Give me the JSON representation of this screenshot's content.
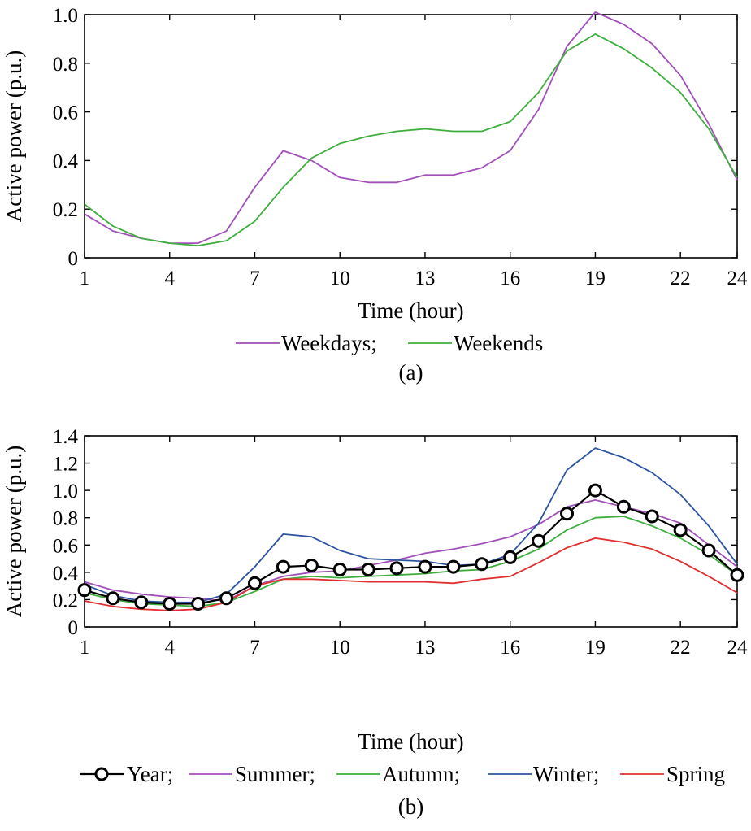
{
  "chart_data": [
    {
      "type": "line",
      "caption": "(a)",
      "xlabel": "Time (hour)",
      "ylabel": "Active power (p.u.)",
      "xlim": [
        1,
        24
      ],
      "ylim": [
        0,
        1.0
      ],
      "xticks": [
        1,
        4,
        7,
        10,
        13,
        16,
        19,
        22,
        24
      ],
      "yticks": [
        0,
        0.2,
        0.4,
        0.6,
        0.8,
        1.0
      ],
      "ytick_labels": [
        "0",
        "0.2",
        "0.4",
        "0.6",
        "0.8",
        "1.0"
      ],
      "grid": false,
      "legend_position": "below",
      "x": [
        1,
        2,
        3,
        4,
        5,
        6,
        7,
        8,
        9,
        10,
        11,
        12,
        13,
        14,
        15,
        16,
        17,
        18,
        19,
        20,
        21,
        22,
        23,
        24
      ],
      "series": [
        {
          "name": "Weekdays;",
          "color": "#a050b8",
          "marker": "none",
          "values": [
            0.18,
            0.11,
            0.08,
            0.06,
            0.06,
            0.11,
            0.29,
            0.44,
            0.4,
            0.33,
            0.31,
            0.31,
            0.34,
            0.34,
            0.37,
            0.44,
            0.61,
            0.87,
            1.01,
            0.96,
            0.88,
            0.75,
            0.55,
            0.32
          ]
        },
        {
          "name": "Weekends",
          "color": "#3fae3f",
          "marker": "none",
          "values": [
            0.22,
            0.13,
            0.08,
            0.06,
            0.05,
            0.07,
            0.15,
            0.29,
            0.41,
            0.47,
            0.5,
            0.52,
            0.53,
            0.52,
            0.52,
            0.56,
            0.68,
            0.85,
            0.92,
            0.86,
            0.78,
            0.68,
            0.53,
            0.33
          ]
        }
      ]
    },
    {
      "type": "line",
      "caption": "(b)",
      "xlabel": "Time (hour)",
      "ylabel": "Active power (p.u.)",
      "xlim": [
        1,
        24
      ],
      "ylim": [
        0,
        1.4
      ],
      "xticks": [
        1,
        4,
        7,
        10,
        13,
        16,
        19,
        22,
        24
      ],
      "yticks": [
        0,
        0.2,
        0.4,
        0.6,
        0.8,
        1.0,
        1.2,
        1.4
      ],
      "ytick_labels": [
        "0",
        "0.2",
        "0.4",
        "0.6",
        "0.8",
        "1.0",
        "1.2",
        "1.4"
      ],
      "grid": false,
      "legend_position": "below",
      "x": [
        1,
        2,
        3,
        4,
        5,
        6,
        7,
        8,
        9,
        10,
        11,
        12,
        13,
        14,
        15,
        16,
        17,
        18,
        19,
        20,
        21,
        22,
        23,
        24
      ],
      "series": [
        {
          "name": "Year;",
          "color": "#000000",
          "marker": "circle",
          "values": [
            0.27,
            0.21,
            0.18,
            0.17,
            0.17,
            0.21,
            0.32,
            0.44,
            0.45,
            0.42,
            0.42,
            0.43,
            0.44,
            0.44,
            0.46,
            0.51,
            0.63,
            0.83,
            1.0,
            0.88,
            0.81,
            0.71,
            0.56,
            0.38
          ]
        },
        {
          "name": "Summer;",
          "color": "#a050b8",
          "marker": "none",
          "values": [
            0.33,
            0.27,
            0.24,
            0.22,
            0.21,
            0.19,
            0.3,
            0.37,
            0.4,
            0.41,
            0.45,
            0.49,
            0.54,
            0.57,
            0.61,
            0.66,
            0.75,
            0.88,
            0.93,
            0.88,
            0.83,
            0.76,
            0.6,
            0.44
          ]
        },
        {
          "name": "Autumn;",
          "color": "#3fae3f",
          "marker": "none",
          "values": [
            0.25,
            0.2,
            0.17,
            0.16,
            0.15,
            0.18,
            0.26,
            0.35,
            0.37,
            0.36,
            0.37,
            0.38,
            0.39,
            0.41,
            0.42,
            0.48,
            0.57,
            0.71,
            0.8,
            0.81,
            0.74,
            0.65,
            0.53,
            0.38
          ]
        },
        {
          "name": "Winter;",
          "color": "#2e54a0",
          "marker": "none",
          "values": [
            0.31,
            0.23,
            0.19,
            0.18,
            0.18,
            0.24,
            0.44,
            0.68,
            0.66,
            0.56,
            0.5,
            0.49,
            0.48,
            0.45,
            0.46,
            0.53,
            0.76,
            1.15,
            1.31,
            1.24,
            1.13,
            0.97,
            0.74,
            0.46
          ]
        },
        {
          "name": "Spring",
          "color": "#e03030",
          "marker": "none",
          "values": [
            0.19,
            0.15,
            0.13,
            0.12,
            0.13,
            0.18,
            0.3,
            0.35,
            0.35,
            0.34,
            0.33,
            0.33,
            0.33,
            0.32,
            0.35,
            0.37,
            0.47,
            0.58,
            0.65,
            0.62,
            0.57,
            0.48,
            0.37,
            0.25
          ]
        }
      ]
    }
  ]
}
